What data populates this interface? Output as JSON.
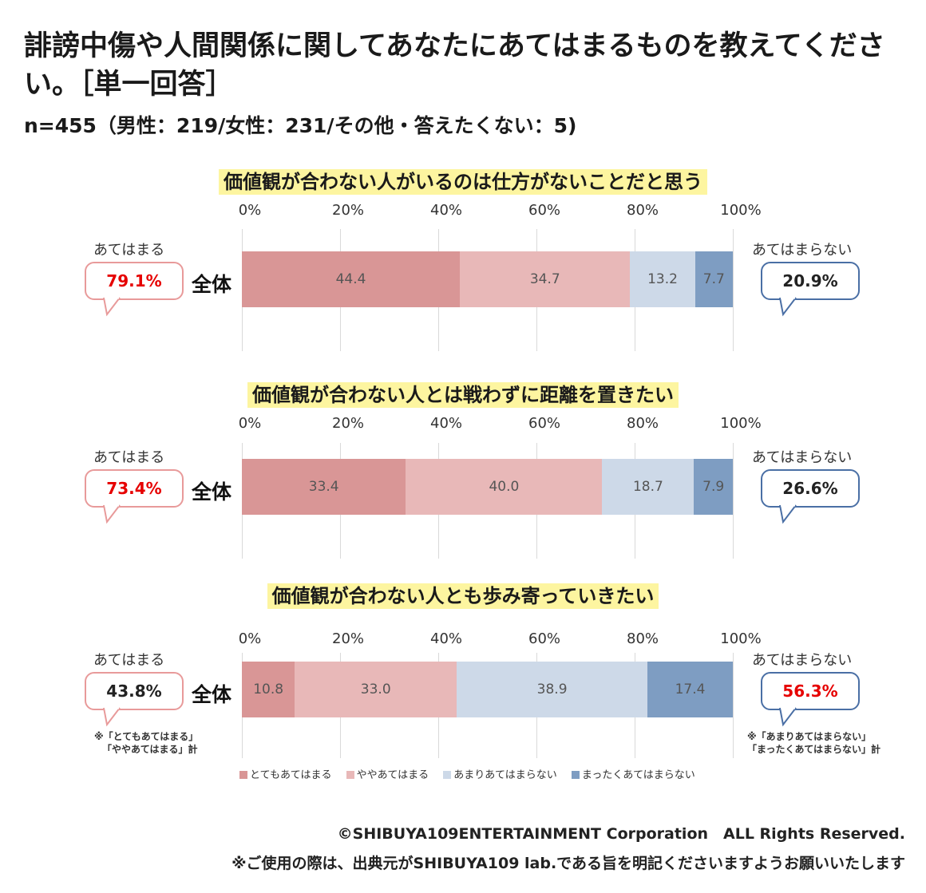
{
  "title": "誹謗中傷や人間関係に関してあなたにあてはまるものを教えてください。［単一回答］",
  "subtitle": "n=455（男性：219/女性：231/その他・答えたくない：5)",
  "colors": {
    "very_applies": "#d99696",
    "somewhat_applies": "#e8b8b8",
    "not_really": "#cdd9e8",
    "not_at_all": "#7e9dc2",
    "positive_text": "#e60000",
    "negative_text": "#e60000"
  },
  "legend": {
    "very_applies": "とてもあてはまる",
    "somewhat_applies": "ややあてはまる",
    "not_really": "あまりあてはまらない",
    "not_at_all": "まったくあてはまらない"
  },
  "notes": {
    "positive": [
      "※「とてもあてはまる」",
      "「ややあてはまる」計"
    ],
    "negative": [
      "※「あまりあてはまらない」",
      "「まったくあてはまらない」計"
    ]
  },
  "footer": {
    "copyright": "©SHIBUYA109ENTERTAINMENT Corporation　ALL Rights Reserved.",
    "usage": "※ご使用の際は、出典元がSHIBUYA109 lab.である旨を明記くださいますようお願いいたします"
  },
  "chart_data": [
    {
      "type": "bar",
      "orientation": "horizontal-stacked-100",
      "title": "価値観が合わない人がいるのは仕方がないことだと思う",
      "ticks": [
        "0%",
        "20%",
        "40%",
        "60%",
        "80%",
        "100%"
      ],
      "categories": [
        "全体"
      ],
      "series": [
        {
          "name": "とてもあてはまる",
          "values": [
            44.4
          ],
          "labels": [
            "44.4"
          ]
        },
        {
          "name": "ややあてはまる",
          "values": [
            34.7
          ],
          "labels": [
            "34.7"
          ]
        },
        {
          "name": "あまりあてはまらない",
          "values": [
            13.2
          ],
          "labels": [
            "13.2"
          ]
        },
        {
          "name": "まったくあてはまらない",
          "values": [
            7.7
          ],
          "labels": [
            "7.7"
          ]
        }
      ],
      "positive_caption": "あてはまる",
      "positive_total": "79.1%",
      "negative_caption": "あてはまらない",
      "negative_total": "20.9%",
      "positive_total_red": true,
      "negative_total_red": false
    },
    {
      "type": "bar",
      "orientation": "horizontal-stacked-100",
      "title": "価値観が合わない人とは戦わずに距離を置きたい",
      "ticks": [
        "0%",
        "20%",
        "40%",
        "60%",
        "80%",
        "100%"
      ],
      "categories": [
        "全体"
      ],
      "series": [
        {
          "name": "とてもあてはまる",
          "values": [
            33.4
          ],
          "labels": [
            "33.4"
          ]
        },
        {
          "name": "ややあてはまる",
          "values": [
            40.0
          ],
          "labels": [
            "40.0"
          ]
        },
        {
          "name": "あまりあてはまらない",
          "values": [
            18.7
          ],
          "labels": [
            "18.7"
          ]
        },
        {
          "name": "まったくあてはまらない",
          "values": [
            7.9
          ],
          "labels": [
            "7.9"
          ]
        }
      ],
      "positive_caption": "あてはまる",
      "positive_total": "73.4%",
      "negative_caption": "あてはまらない",
      "negative_total": "26.6%",
      "positive_total_red": true,
      "negative_total_red": false
    },
    {
      "type": "bar",
      "orientation": "horizontal-stacked-100",
      "title": "価値観が合わない人とも歩み寄っていきたい",
      "ticks": [
        "0%",
        "20%",
        "40%",
        "60%",
        "80%",
        "100%"
      ],
      "categories": [
        "全体"
      ],
      "series": [
        {
          "name": "とてもあてはまる",
          "values": [
            10.8
          ],
          "labels": [
            "10.8"
          ]
        },
        {
          "name": "ややあてはまる",
          "values": [
            33.0
          ],
          "labels": [
            "33.0"
          ]
        },
        {
          "name": "あまりあてはまらない",
          "values": [
            38.9
          ],
          "labels": [
            "38.9"
          ]
        },
        {
          "name": "まったくあてはまらない",
          "values": [
            17.4
          ],
          "labels": [
            "17.4"
          ]
        }
      ],
      "positive_caption": "あてはまる",
      "positive_total": "43.8%",
      "negative_caption": "あてはまらない",
      "negative_total": "56.3%",
      "positive_total_red": false,
      "negative_total_red": true
    }
  ]
}
